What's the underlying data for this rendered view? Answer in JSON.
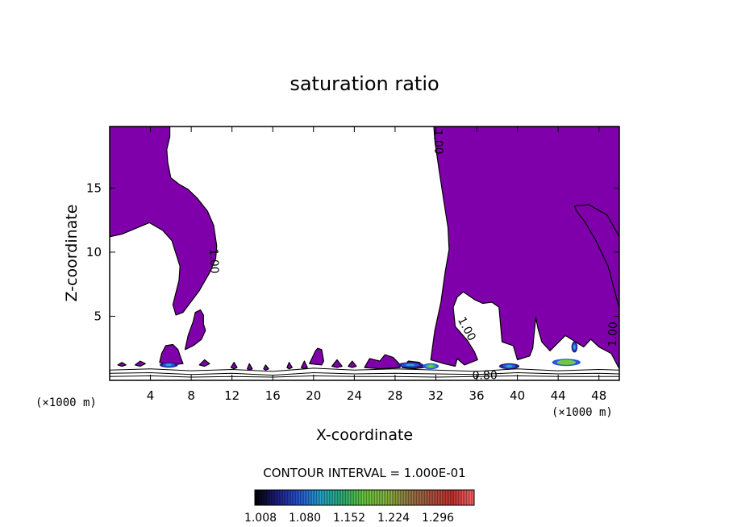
{
  "chart_data": {
    "type": "filled-contour",
    "title": "saturation ratio",
    "xlabel": "X-coordinate",
    "ylabel": "Z-coordinate",
    "x_unit": "(×1000 m)",
    "y_unit": "(×1000 m)",
    "xlim": [
      0,
      50
    ],
    "ylim": [
      0,
      19.8
    ],
    "x_ticks": [
      4,
      8,
      12,
      16,
      20,
      24,
      28,
      32,
      36,
      40,
      44,
      48
    ],
    "y_ticks": [
      5,
      10,
      15
    ],
    "x_tick_labels": [
      "4",
      "8",
      "12",
      "16",
      "20",
      "24",
      "28",
      "32",
      "36",
      "40",
      "44",
      "48"
    ],
    "y_tick_labels": [
      "5",
      "10",
      "15"
    ],
    "contour_interval_text": "CONTOUR INTERVAL = 1.000E-01",
    "contour_labels": [
      "1.00",
      "1.00",
      "1.00",
      "1.00",
      "0.80"
    ],
    "fill_color": "#7f00aa",
    "fill_threshold": 1.0,
    "colorbar": {
      "labels": [
        "1.008",
        "1.080",
        "1.152",
        "1.224",
        "1.296"
      ],
      "colors": [
        "#000000",
        "#1e1e80",
        "#2a55dd",
        "#25a8cc",
        "#2eb27a",
        "#6cce3c",
        "#88bb40",
        "#9a7e45",
        "#b05540",
        "#cc3030",
        "#ff7070"
      ]
    },
    "regions": [
      {
        "name": "upper-left-plume",
        "polygon": [
          [
            0,
            19.8
          ],
          [
            5.9,
            19.8
          ],
          [
            5.9,
            19
          ],
          [
            5.6,
            18
          ],
          [
            5.7,
            17
          ],
          [
            6,
            15.8
          ],
          [
            6.8,
            15.3
          ],
          [
            7.7,
            14.9
          ],
          [
            8.6,
            14.2
          ],
          [
            9.6,
            13.2
          ],
          [
            10.2,
            12.1
          ],
          [
            10.5,
            10.5
          ],
          [
            10.4,
            9.5
          ],
          [
            9.8,
            8.4
          ],
          [
            8.8,
            7
          ],
          [
            7.2,
            5.3
          ],
          [
            6.5,
            5.1
          ],
          [
            6.2,
            5.9
          ],
          [
            6.8,
            7.8
          ],
          [
            6.9,
            8.9
          ],
          [
            6.1,
            10.9
          ],
          [
            5.2,
            11.7
          ],
          [
            3.9,
            12.3
          ],
          [
            1.2,
            11.4
          ],
          [
            0,
            11.2
          ]
        ]
      },
      {
        "name": "right-plume",
        "polygon": [
          [
            31.8,
            19.8
          ],
          [
            50,
            19.8
          ],
          [
            50,
            5.6
          ],
          [
            49.6,
            6.8
          ],
          [
            48.9,
            8.9
          ],
          [
            47.7,
            10.9
          ],
          [
            46.6,
            12.4
          ],
          [
            45.8,
            13.2
          ],
          [
            45.6,
            13.6
          ],
          [
            47,
            13.7
          ],
          [
            48.8,
            12.9
          ],
          [
            50,
            11.2
          ],
          [
            50,
            0.9
          ],
          [
            49.2,
            2.1
          ],
          [
            48,
            2.6
          ],
          [
            47.2,
            3.2
          ],
          [
            46.5,
            2.6
          ],
          [
            44.7,
            3.5
          ],
          [
            43.2,
            2.3
          ],
          [
            42.4,
            3
          ],
          [
            42,
            4.1
          ],
          [
            41.8,
            4.9
          ],
          [
            41.5,
            2.5
          ],
          [
            41.2,
            1.9
          ],
          [
            40,
            1.6
          ],
          [
            39.6,
            2.7
          ],
          [
            38.5,
            3
          ],
          [
            38.2,
            5.7
          ],
          [
            37.5,
            6.1
          ],
          [
            36.6,
            6
          ],
          [
            35.8,
            6.3
          ],
          [
            34.7,
            6.9
          ],
          [
            34.1,
            6.5
          ],
          [
            33.7,
            5.7
          ],
          [
            33.9,
            4.2
          ],
          [
            35.1,
            3.1
          ],
          [
            35.8,
            2.2
          ],
          [
            36.1,
            1.6
          ],
          [
            34.8,
            1.2
          ],
          [
            34.1,
            1.7
          ],
          [
            33.9,
            1.1
          ],
          [
            32.8,
            1.3
          ],
          [
            31.5,
            1.6
          ],
          [
            31.9,
            3.9
          ],
          [
            32.5,
            6.1
          ],
          [
            32.9,
            8.4
          ],
          [
            33.3,
            10.2
          ],
          [
            33.2,
            11.9
          ],
          [
            32.8,
            13.9
          ],
          [
            32.3,
            16.5
          ],
          [
            31.9,
            18.7
          ]
        ]
      },
      {
        "name": "blob-at-x7",
        "polygon": [
          [
            7.4,
            2.4
          ],
          [
            7.7,
            3.5
          ],
          [
            8.2,
            4.6
          ],
          [
            8.4,
            5.3
          ],
          [
            8.9,
            5.5
          ],
          [
            9.2,
            5.1
          ],
          [
            9.2,
            4.4
          ],
          [
            9.4,
            3.9
          ],
          [
            9,
            3.2
          ],
          [
            8.2,
            2.7
          ]
        ]
      },
      {
        "name": "blob-at-x6",
        "polygon": [
          [
            4.9,
            1.4
          ],
          [
            5.1,
            2.1
          ],
          [
            5.5,
            2.7
          ],
          [
            6.2,
            2.8
          ],
          [
            6.7,
            2.4
          ],
          [
            7,
            1.7
          ],
          [
            7.2,
            1.3
          ],
          [
            5.9,
            1.2
          ]
        ]
      },
      {
        "name": "blob-at-x21",
        "polygon": [
          [
            19.6,
            1.3
          ],
          [
            20.2,
            2.3
          ],
          [
            20.4,
            2.5
          ],
          [
            20.8,
            2.4
          ],
          [
            21,
            1.5
          ],
          [
            20.8,
            1.2
          ]
        ]
      },
      {
        "name": "speck-1",
        "polygon": [
          [
            0.8,
            1.2
          ],
          [
            1.2,
            1.4
          ],
          [
            1.6,
            1.2
          ],
          [
            1.2,
            1.1
          ]
        ]
      },
      {
        "name": "speck-2",
        "polygon": [
          [
            2.5,
            1.2
          ],
          [
            3,
            1.5
          ],
          [
            3.5,
            1.3
          ],
          [
            3,
            1.1
          ]
        ]
      },
      {
        "name": "speck-3",
        "polygon": [
          [
            8.8,
            1.2
          ],
          [
            9.3,
            1.6
          ],
          [
            9.8,
            1.3
          ],
          [
            9.3,
            1.1
          ]
        ]
      },
      {
        "name": "speck-4",
        "polygon": [
          [
            11.9,
            1
          ],
          [
            12.2,
            1.4
          ],
          [
            12.5,
            1
          ],
          [
            12.2,
            0.9
          ]
        ]
      },
      {
        "name": "speck-5",
        "polygon": [
          [
            13.5,
            0.9
          ],
          [
            13.7,
            1.3
          ],
          [
            14,
            0.9
          ],
          [
            13.7,
            0.8
          ]
        ]
      },
      {
        "name": "speck-6",
        "polygon": [
          [
            15.1,
            0.9
          ],
          [
            15.3,
            1.2
          ],
          [
            15.6,
            0.9
          ],
          [
            15.3,
            0.8
          ]
        ]
      },
      {
        "name": "speck-7",
        "polygon": [
          [
            17.4,
            1
          ],
          [
            17.6,
            1.4
          ],
          [
            17.9,
            1
          ],
          [
            17.6,
            0.9
          ]
        ]
      },
      {
        "name": "speck-8",
        "polygon": [
          [
            18.8,
            1
          ],
          [
            19.1,
            1.5
          ],
          [
            19.4,
            1
          ],
          [
            19.1,
            0.9
          ]
        ]
      },
      {
        "name": "speck-9",
        "polygon": [
          [
            21.8,
            1.1
          ],
          [
            22.3,
            1.6
          ],
          [
            22.8,
            1.1
          ],
          [
            22.3,
            1
          ]
        ]
      },
      {
        "name": "speck-10",
        "polygon": [
          [
            23.4,
            1.1
          ],
          [
            23.8,
            1.5
          ],
          [
            24.2,
            1.1
          ],
          [
            23.8,
            1
          ]
        ]
      },
      {
        "name": "band-25-28",
        "polygon": [
          [
            25,
            1
          ],
          [
            25.5,
            1.7
          ],
          [
            26.5,
            1.5
          ],
          [
            27,
            2
          ],
          [
            27.8,
            1.8
          ],
          [
            28.4,
            1.3
          ],
          [
            28.5,
            1
          ],
          [
            26.5,
            0.9
          ]
        ]
      },
      {
        "name": "band-28-30",
        "polygon": [
          [
            28.7,
            1
          ],
          [
            29.3,
            1.5
          ],
          [
            30.4,
            1.4
          ],
          [
            30.8,
            1
          ],
          [
            29.8,
            0.9
          ]
        ]
      }
    ],
    "hot_spots": [
      {
        "x": 5.8,
        "z": 1.2,
        "w": 1.8,
        "h": 0.35,
        "colors": [
          "#1e1e80",
          "#2a55dd",
          "#25a8cc"
        ]
      },
      {
        "x": 29.5,
        "z": 1.2,
        "w": 2.6,
        "h": 0.35,
        "colors": [
          "#1e1e80",
          "#2a55dd",
          "#25a8cc"
        ]
      },
      {
        "x": 31.5,
        "z": 1.1,
        "w": 1.6,
        "h": 0.4,
        "colors": [
          "#2a55dd",
          "#2eb27a",
          "#6cce3c"
        ]
      },
      {
        "x": 39.2,
        "z": 1.1,
        "w": 2.0,
        "h": 0.4,
        "colors": [
          "#1e1e80",
          "#2a55dd",
          "#25a8cc"
        ]
      },
      {
        "x": 44.8,
        "z": 1.4,
        "w": 2.8,
        "h": 0.5,
        "colors": [
          "#2a55dd",
          "#6cce3c",
          "#88bb40"
        ]
      },
      {
        "x": 45.6,
        "z": 2.6,
        "w": 0.6,
        "h": 0.8,
        "colors": [
          "#1e1e80",
          "#2a55dd",
          "#25a8cc"
        ]
      }
    ],
    "contour_lines": [
      [
        [
          0,
          0.8
        ],
        [
          4,
          0.9
        ],
        [
          8,
          0.75
        ],
        [
          12,
          0.85
        ],
        [
          16,
          0.7
        ],
        [
          20,
          0.95
        ],
        [
          24,
          0.8
        ],
        [
          28,
          0.9
        ],
        [
          32,
          0.8
        ],
        [
          36,
          0.7
        ],
        [
          40,
          0.9
        ],
        [
          44,
          0.75
        ],
        [
          48,
          0.85
        ],
        [
          50,
          0.8
        ]
      ],
      [
        [
          0,
          0.55
        ],
        [
          4,
          0.6
        ],
        [
          8,
          0.45
        ],
        [
          12,
          0.55
        ],
        [
          16,
          0.4
        ],
        [
          20,
          0.6
        ],
        [
          24,
          0.5
        ],
        [
          28,
          0.55
        ],
        [
          32,
          0.5
        ],
        [
          36,
          0.45
        ],
        [
          40,
          0.6
        ],
        [
          44,
          0.5
        ],
        [
          48,
          0.55
        ],
        [
          50,
          0.5
        ]
      ],
      [
        [
          0,
          0.3
        ],
        [
          4,
          0.35
        ],
        [
          8,
          0.25
        ],
        [
          12,
          0.3
        ],
        [
          16,
          0.25
        ],
        [
          20,
          0.35
        ],
        [
          24,
          0.3
        ],
        [
          28,
          0.3
        ],
        [
          32,
          0.25
        ],
        [
          36,
          0.3
        ],
        [
          40,
          0.35
        ],
        [
          44,
          0.3
        ],
        [
          48,
          0.3
        ],
        [
          50,
          0.3
        ]
      ]
    ],
    "contour_label_anchors": [
      {
        "x": 32.2,
        "z": 18.6,
        "rotate": 88,
        "label_index": 0
      },
      {
        "x": 10.2,
        "z": 9.3,
        "rotate": 88,
        "label_index": 1
      },
      {
        "x": 35.0,
        "z": 4.0,
        "rotate": 62,
        "label_index": 2
      },
      {
        "x": 49.4,
        "z": 3.6,
        "rotate": -88,
        "label_index": 3
      },
      {
        "x": 36.8,
        "z": 0.35,
        "rotate": 0,
        "label_index": 4
      }
    ]
  }
}
